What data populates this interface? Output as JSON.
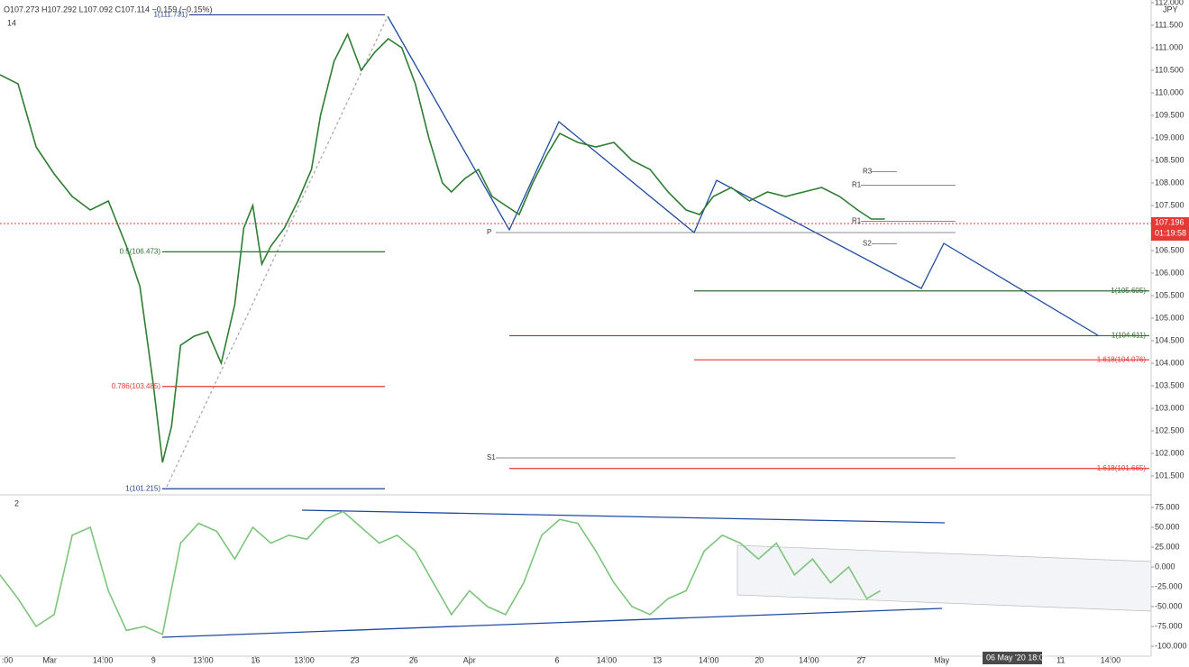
{
  "header": {
    "ohlc": "O107.273 H107.292 L107.092 C107.114 −0.159 (−0.15%)",
    "indicator_main": "14",
    "indicator_sub": "2",
    "currency": "JPY",
    "last_price": "107.196",
    "countdown": "01:19:58",
    "crosshair_date": "06 May '20 18:00"
  },
  "chart_data": [
    {
      "type": "line",
      "color": "#2e7d32",
      "xlim": [
        0,
        127.5
      ],
      "ylim": [
        101.1,
        112.06
      ],
      "x": [
        0,
        2,
        4,
        6,
        8,
        10,
        12,
        14,
        15.5,
        17,
        18,
        19,
        20,
        21.5,
        23,
        24.5,
        26,
        27,
        28,
        29,
        30,
        31.5,
        33,
        34.5,
        35.5,
        37,
        38.5,
        40,
        41.5,
        43,
        44.5,
        46,
        47.5,
        49,
        50,
        51.5,
        53,
        54.5,
        56,
        57.5,
        59,
        60.5,
        62,
        64,
        66,
        68,
        70,
        72,
        74,
        76,
        77.5,
        79,
        81,
        83,
        85,
        87,
        89,
        91,
        93,
        95,
        96.5,
        98
      ],
      "values": [
        110.4,
        110.2,
        108.8,
        108.2,
        107.7,
        107.4,
        107.6,
        106.6,
        105.7,
        103.5,
        101.8,
        102.6,
        104.4,
        104.6,
        104.7,
        104,
        105.3,
        107,
        107.5,
        106.2,
        106.6,
        107,
        107.6,
        108.3,
        109.5,
        110.7,
        111.3,
        110.5,
        110.9,
        111.2,
        111,
        110.2,
        109,
        108,
        107.8,
        108.1,
        108.3,
        107.7,
        107.5,
        107.3,
        108,
        108.6,
        109.1,
        108.9,
        108.8,
        108.9,
        108.5,
        108.3,
        107.8,
        107.4,
        107.3,
        107.7,
        107.9,
        107.6,
        107.8,
        107.7,
        107.8,
        107.9,
        107.7,
        107.4,
        107.2,
        107.2
      ],
      "yticks": [
        {
          "value": 101.5,
          "label": "101.500"
        },
        {
          "value": 102,
          "label": "102.000"
        },
        {
          "value": 102.5,
          "label": "102.500"
        },
        {
          "value": 103,
          "label": "103.000"
        },
        {
          "value": 103.5,
          "label": "103.500"
        },
        {
          "value": 104,
          "label": "104.000"
        },
        {
          "value": 104.5,
          "label": "104.500"
        },
        {
          "value": 105,
          "label": "105.000"
        },
        {
          "value": 105.5,
          "label": "105.500"
        },
        {
          "value": 106,
          "label": "106.000"
        },
        {
          "value": 106.5,
          "label": "106.500"
        },
        {
          "value": 107,
          "label": "107.000"
        },
        {
          "value": 107.5,
          "label": "107.500"
        },
        {
          "value": 108,
          "label": "108.000"
        },
        {
          "value": 108.5,
          "label": "108.500"
        },
        {
          "value": 109,
          "label": "109.000"
        },
        {
          "value": 109.5,
          "label": "109.500"
        },
        {
          "value": 110,
          "label": "110.000"
        },
        {
          "value": 110.5,
          "label": "110.500"
        },
        {
          "value": 111,
          "label": "111.000"
        },
        {
          "value": 111.5,
          "label": "111.500"
        },
        {
          "value": 112,
          "label": "112.000"
        }
      ],
      "xticks": [
        {
          "value": 0.8,
          "label": ":00"
        },
        {
          "value": 5.5,
          "label": "Mar"
        },
        {
          "value": 11.4,
          "label": "14:00"
        },
        {
          "value": 17,
          "label": "9"
        },
        {
          "value": 22.5,
          "label": "13:00"
        },
        {
          "value": 28.3,
          "label": "16"
        },
        {
          "value": 33.7,
          "label": "13:00"
        },
        {
          "value": 39.3,
          "label": "23"
        },
        {
          "value": 45.8,
          "label": "26"
        },
        {
          "value": 52,
          "label": "Apr"
        },
        {
          "value": 61.7,
          "label": "6"
        },
        {
          "value": 67.2,
          "label": "14:00"
        },
        {
          "value": 72.8,
          "label": "13"
        },
        {
          "value": 78.5,
          "label": "14:00"
        },
        {
          "value": 84.1,
          "label": "20"
        },
        {
          "value": 89.6,
          "label": "14:00"
        },
        {
          "value": 95.4,
          "label": "27"
        },
        {
          "value": 104.3,
          "label": "May"
        },
        {
          "value": 117.5,
          "label": "11"
        },
        {
          "value": 123,
          "label": "14:00"
        }
      ],
      "levels": [
        {
          "value": 111.731,
          "label": "1(111.731)",
          "color": "#1e3f8f"
        },
        {
          "value": 106.473,
          "label": "0.5(106.473)",
          "color": "#2e6b2e"
        },
        {
          "value": 103.485,
          "label": "0.786(103.485)",
          "color": "#e53935"
        },
        {
          "value": 101.215,
          "label": "1(101.215)",
          "color": "#1e3f8f"
        },
        {
          "value": 105.605,
          "label": "1(105.605)",
          "color": "#2e6b2e"
        },
        {
          "value": 104.611,
          "label": "1(104.611)",
          "color": "#2e6b2e"
        },
        {
          "value": 104.076,
          "label": "1.618(104.076)",
          "color": "#e53935"
        },
        {
          "value": 101.665,
          "label": "1.618(101.665)",
          "color": "#e53935"
        }
      ],
      "pivots": [
        {
          "value": 108.25,
          "label": "R3"
        },
        {
          "value": 107.95,
          "label": "R1"
        },
        {
          "value": 107.15,
          "label": "R1"
        },
        {
          "value": 106.9,
          "label": "P"
        },
        {
          "value": 106.65,
          "label": "S2"
        },
        {
          "value": 101.9,
          "label": "S1"
        }
      ]
    },
    {
      "type": "line",
      "color": "#7cc47c",
      "xlim": [
        0,
        127.5
      ],
      "ylim": [
        -112.5,
        89.8
      ],
      "x": [
        0,
        2,
        4,
        6,
        8,
        10,
        12,
        14,
        16,
        18,
        20,
        22,
        24,
        26,
        28,
        30,
        32,
        34,
        36,
        38,
        40,
        42,
        44,
        46,
        48,
        50,
        52,
        54,
        56,
        58,
        60,
        62,
        64,
        66,
        68,
        70,
        72,
        74,
        76,
        78,
        80,
        82,
        84,
        86,
        88,
        90,
        92,
        94,
        96,
        97.5
      ],
      "values": [
        -10,
        -40,
        -75,
        -60,
        40,
        50,
        -30,
        -80,
        -75,
        -85,
        30,
        55,
        45,
        10,
        50,
        30,
        40,
        35,
        60,
        70,
        50,
        30,
        40,
        20,
        -20,
        -60,
        -30,
        -50,
        -60,
        -20,
        40,
        60,
        55,
        20,
        -20,
        -50,
        -60,
        -40,
        -30,
        20,
        40,
        30,
        10,
        30,
        -10,
        10,
        -20,
        0,
        -40,
        -30
      ],
      "yticks": [
        {
          "value": 75,
          "label": "75.000"
        },
        {
          "value": 50,
          "label": "50.000"
        },
        {
          "value": 25,
          "label": "25.000"
        },
        {
          "value": 0,
          "label": "0.000"
        },
        {
          "value": -25,
          "label": "-25.000"
        },
        {
          "value": -50,
          "label": "-50.000"
        },
        {
          "value": -75,
          "label": "-75.000"
        },
        {
          "value": -100,
          "label": "-100.000"
        }
      ]
    }
  ]
}
